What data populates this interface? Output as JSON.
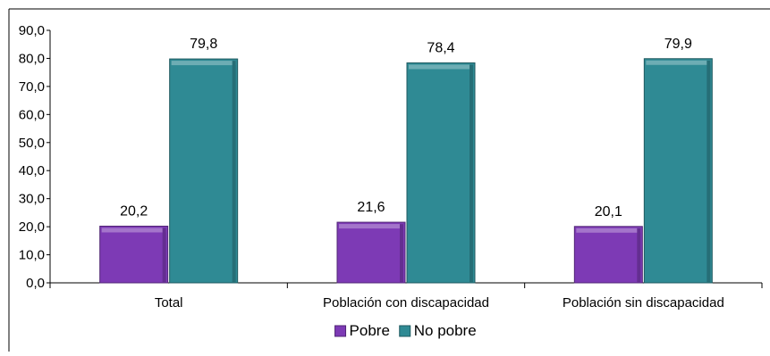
{
  "chart_data": {
    "type": "bar",
    "categories": [
      "Total",
      "Población con discapacidad",
      "Población sin discapacidad"
    ],
    "series": [
      {
        "name": "Pobre",
        "values": [
          20.2,
          21.6,
          20.1
        ],
        "color": "#7d3ab5"
      },
      {
        "name": "No pobre",
        "values": [
          79.8,
          78.4,
          79.9
        ],
        "color": "#2f8a94"
      }
    ],
    "value_labels": [
      [
        "20,2",
        "21,6",
        "20,1"
      ],
      [
        "79,8",
        "78,4",
        "79,9"
      ]
    ],
    "yticks": [
      "0,0",
      "10,0",
      "20,0",
      "30,0",
      "40,0",
      "50,0",
      "60,0",
      "70,0",
      "80,0",
      "90,0"
    ],
    "ylim": [
      0,
      90
    ],
    "title": "",
    "xlabel": "",
    "ylabel": "",
    "legend_position": "bottom-center",
    "grid": false
  }
}
